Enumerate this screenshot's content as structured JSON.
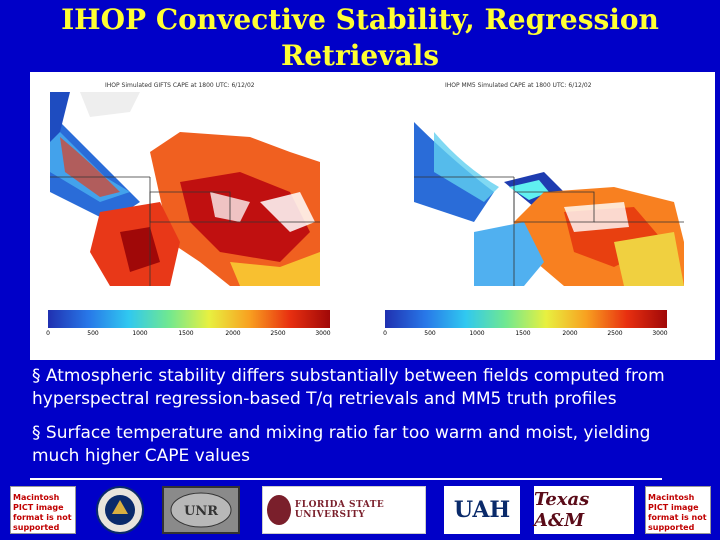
{
  "slide": {
    "title_line1": "IHOP Convective Stability, Regression",
    "title_line2": "Retrievals"
  },
  "maps": [
    {
      "caption": "IHOP Simulated GIFTS CAPE at 1800 UTC: 6/12/02",
      "colorbar_ticks": [
        "0",
        "500",
        "1000",
        "1500",
        "2000",
        "2500",
        "3000"
      ]
    },
    {
      "caption": "IHOP MM5 Simulated CAPE at 1800 UTC: 6/12/02",
      "colorbar_ticks": [
        "0",
        "500",
        "1000",
        "1500",
        "2000",
        "2500",
        "3000"
      ]
    }
  ],
  "bullets": [
    "Atmospheric stability differs substantially between fields computed from hyperspectral regression-based T/q retrievals and MM5 truth profiles",
    "Surface temperature and mixing ratio far too warm and moist, yielding much higher CAPE values"
  ],
  "logos": {
    "pict_left": "Macintosh PICT image format is not supported",
    "fsu": "FLORIDA STATE UNIVERSITY",
    "uah": "UAH",
    "tamu": "Texas A&M",
    "pict_right": "Macintosh PICT image format is not supported"
  },
  "colors": {
    "background": "#0000c8",
    "title": "#ffff33",
    "bullet_text": "#ffffff"
  }
}
